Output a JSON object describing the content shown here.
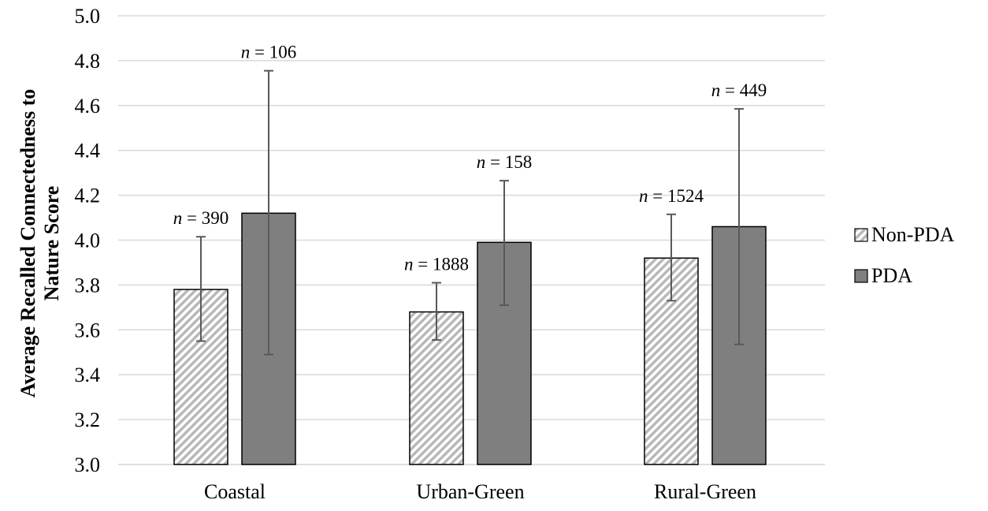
{
  "chart_data": {
    "type": "bar",
    "ylabel": "Average Recalled Connectedness to Nature Score",
    "ylim": [
      3.0,
      5.0
    ],
    "ytick_step": 0.2,
    "ytick_labels": [
      "3.0",
      "3.2",
      "3.4",
      "3.6",
      "3.8",
      "4.0",
      "4.2",
      "4.4",
      "4.6",
      "4.8",
      "5.0"
    ],
    "categories": [
      "Coastal",
      "Urban-Green",
      "Rural-Green"
    ],
    "grid": true,
    "legend_position": "right",
    "series": [
      {
        "name": "Non-PDA",
        "values": [
          3.78,
          3.68,
          3.92
        ],
        "error_low": [
          3.55,
          3.555,
          3.73
        ],
        "error_high": [
          4.015,
          3.81,
          4.115
        ],
        "n_labels": [
          "390",
          "1888",
          "1524"
        ],
        "pattern": "diagonal-hatch",
        "color": "#c8c8c8"
      },
      {
        "name": "PDA",
        "values": [
          4.12,
          3.99,
          4.06
        ],
        "error_low": [
          3.49,
          3.71,
          3.535
        ],
        "error_high": [
          4.755,
          4.265,
          4.585
        ],
        "n_labels": [
          "106",
          "158",
          "449"
        ],
        "pattern": "solid",
        "color": "#7f7f7f"
      }
    ]
  }
}
